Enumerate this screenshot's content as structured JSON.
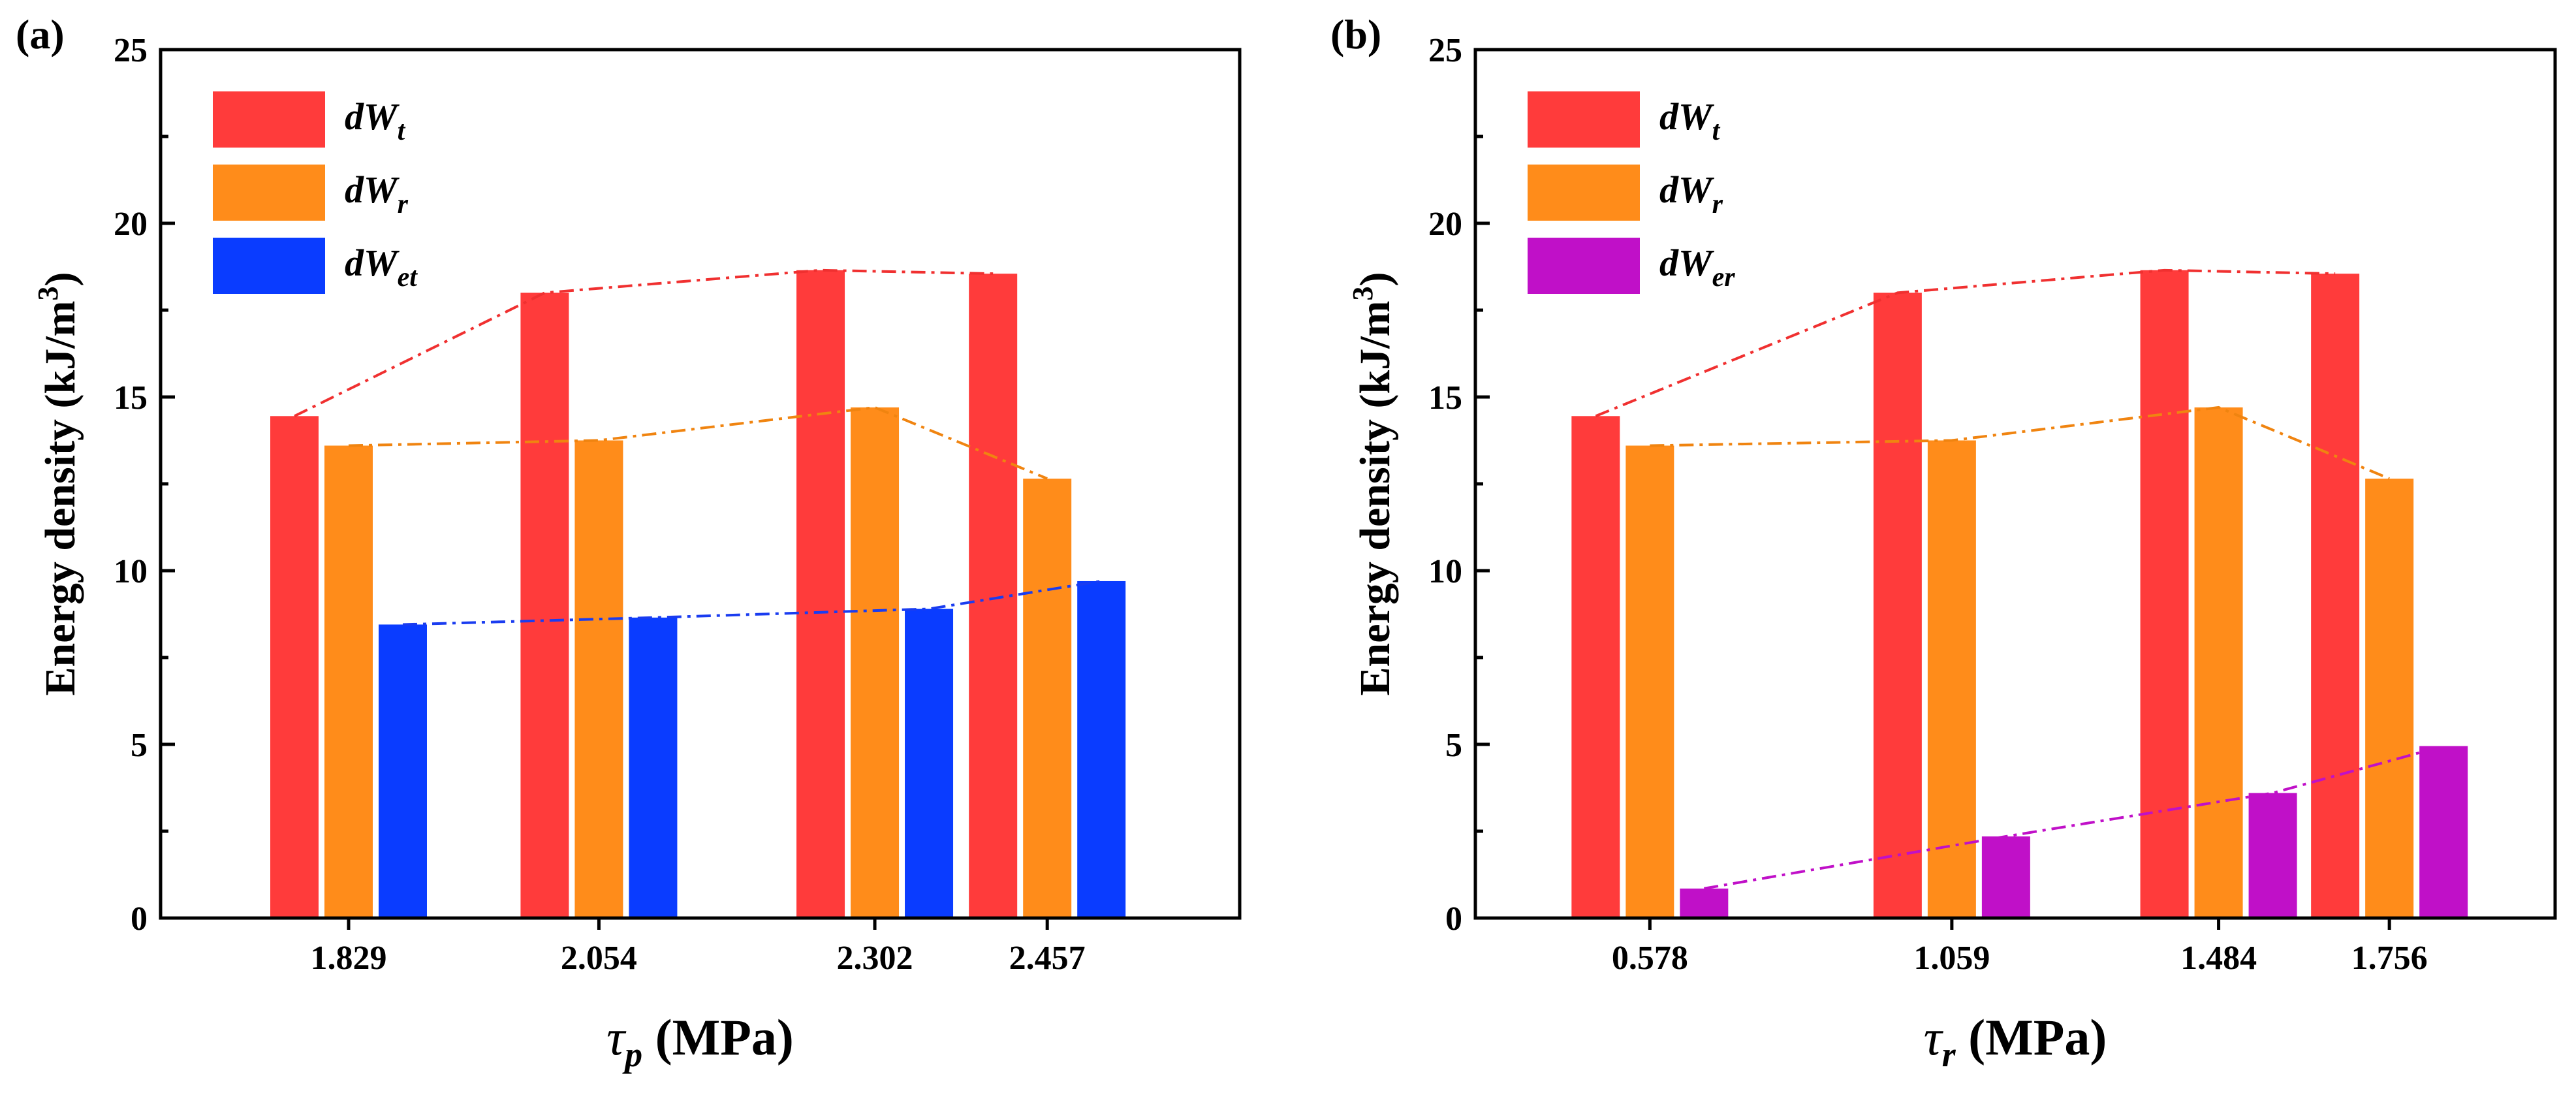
{
  "colors": {
    "dWt": "#FF3B3B",
    "dWt_line": "#F03030",
    "dWr": "#FF8C1A",
    "dWr_line": "#F08410",
    "dWet": "#0A3CFF",
    "dWet_line": "#1A3CF0",
    "dWer": "#C010C8",
    "dWer_line": "#C010C8"
  },
  "chart_data": [
    {
      "type": "bar",
      "panel_label": "(a)",
      "ylabel": "Energy density (kJ/m3)",
      "ylabel_main": "Energy density (kJ/m",
      "ylabel_sup": "3",
      "ylabel_tail": ")",
      "xlabel_symbol": "τ",
      "xlabel_sub": "p",
      "xlabel_units": " (MPa)",
      "ylim": [
        0,
        25
      ],
      "yticks": [
        "0",
        "5",
        "10",
        "15",
        "20",
        "25"
      ],
      "categories": [
        "1.829",
        "2.054",
        "2.302",
        "2.457"
      ],
      "legend_position": "top-left",
      "series": [
        {
          "name": "dWt",
          "base": "dW",
          "sub": "t",
          "color_key": "dWt",
          "values": [
            14.45,
            18.0,
            18.65,
            18.55
          ]
        },
        {
          "name": "dWr",
          "base": "dW",
          "sub": "r",
          "color_key": "dWr",
          "values": [
            13.6,
            13.75,
            14.7,
            12.65
          ]
        },
        {
          "name": "dWet",
          "base": "dW",
          "sub": "et",
          "color_key": "dWet",
          "values": [
            8.45,
            8.65,
            8.9,
            9.7
          ]
        }
      ]
    },
    {
      "type": "bar",
      "panel_label": "(b)",
      "ylabel": "Energy density (kJ/m3)",
      "ylabel_main": "Energy density (kJ/m",
      "ylabel_sup": "3",
      "ylabel_tail": ")",
      "xlabel_symbol": "τ",
      "xlabel_sub": "r",
      "xlabel_units": " (MPa)",
      "ylim": [
        0,
        25
      ],
      "yticks": [
        "0",
        "5",
        "10",
        "15",
        "20",
        "25"
      ],
      "categories": [
        "0.578",
        "1.059",
        "1.484",
        "1.756"
      ],
      "legend_position": "top-left",
      "series": [
        {
          "name": "dWt",
          "base": "dW",
          "sub": "t",
          "color_key": "dWt",
          "values": [
            14.45,
            18.0,
            18.65,
            18.55
          ]
        },
        {
          "name": "dWr",
          "base": "dW",
          "sub": "r",
          "color_key": "dWr",
          "values": [
            13.6,
            13.75,
            14.7,
            12.65
          ]
        },
        {
          "name": "dWer",
          "base": "dW",
          "sub": "er",
          "color_key": "dWer",
          "values": [
            0.85,
            2.35,
            3.6,
            4.95
          ]
        }
      ]
    }
  ]
}
